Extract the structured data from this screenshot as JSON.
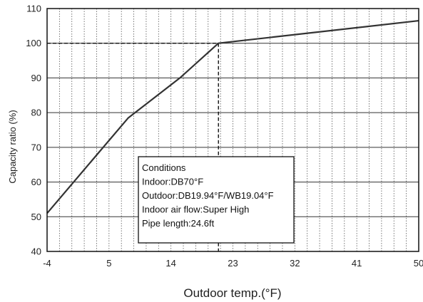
{
  "chart_data": {
    "type": "line",
    "xlabel": "Outdoor temp.(°F)",
    "ylabel": "Capacity ratio (%)",
    "xlim": [
      -4,
      50
    ],
    "ylim": [
      40,
      110
    ],
    "x_ticks": [
      -4,
      5,
      14,
      23,
      32,
      41,
      50
    ],
    "y_ticks": [
      40,
      50,
      60,
      70,
      80,
      90,
      100,
      110
    ],
    "x_minor_step": 1.8,
    "grid": {
      "horizontal": "solid",
      "vertical": "dotted"
    },
    "series": [
      {
        "x": [
          -4,
          7.8,
          15.3,
          20.9,
          50
        ],
        "y": [
          51,
          78.5,
          90,
          100,
          106.5
        ]
      }
    ],
    "reference_point": {
      "x": 20.9,
      "y": 100
    },
    "annotation": {
      "lines": [
        "Conditions",
        "Indoor:DB70°F",
        "Outdoor:DB19.94°F/WB19.04°F",
        "Indoor air flow:Super High",
        "Pipe length:24.6ft"
      ]
    }
  }
}
